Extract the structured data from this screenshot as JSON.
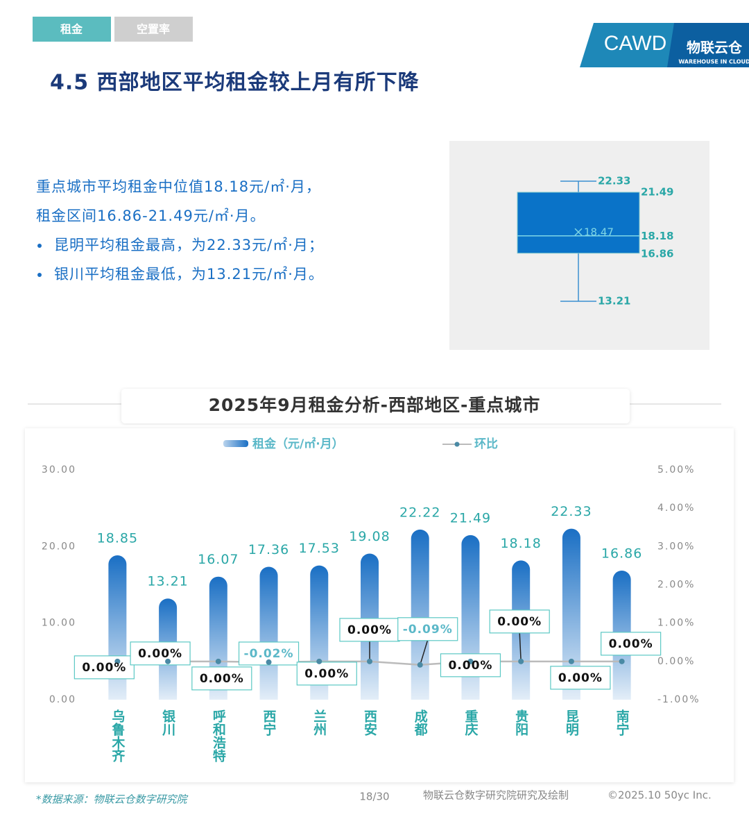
{
  "tabs": [
    "租金",
    "空置率"
  ],
  "logo": {
    "mark": "CAWD",
    "brand": "物联云仓",
    "brand_sub": "WAREHOUSE IN CLOUD"
  },
  "heading": "4.5 西部地区平均租金较上月有所下降",
  "summary": [
    "重点城市平均租金中位值18.18元/㎡·月，",
    "租金区间16.86-21.49元/㎡·月。"
  ],
  "bullets": [
    "昆明平均租金最高，为22.33元/㎡·月；",
    "银川平均租金最低，为13.21元/㎡·月。"
  ],
  "chart_data": [
    {
      "type": "box",
      "color": "#0a73c8",
      "label_color": "#2aa7a7",
      "stats": {
        "max": 22.33,
        "q3": 21.49,
        "median": 18.18,
        "q1": 16.86,
        "min": 13.21,
        "mean": 18.47
      }
    },
    {
      "type": "combo",
      "title": "2025年9月租金分析-西部地区-重点城市",
      "categories": [
        "乌鲁木齐",
        "银川",
        "呼和浩特",
        "西宁",
        "兰州",
        "西安",
        "成都",
        "重庆",
        "贵阳",
        "昆明",
        "南宁"
      ],
      "series": [
        {
          "name": "租金（元/㎡·月）",
          "color": "#1a6fc4",
          "values": [
            18.85,
            13.21,
            16.07,
            17.36,
            17.53,
            19.08,
            22.22,
            21.49,
            18.18,
            22.33,
            16.86
          ]
        },
        {
          "name": "环比",
          "color": "#bbbbbb",
          "axis": "y2",
          "values": [
            0,
            0,
            0,
            -0.02,
            0,
            0,
            -0.09,
            0,
            0,
            0,
            0
          ],
          "value_labels": [
            "0.00%",
            "0.00%",
            "0.00%",
            "-0.02%",
            "0.00%",
            "0.00%",
            "-0.09%",
            "0.00%",
            "0.00%",
            "0.00%",
            "0.00%"
          ]
        }
      ],
      "ylim": [
        0,
        30
      ],
      "yticks": [
        {
          "value": 0,
          "label": "0.00"
        },
        {
          "value": 10,
          "label": "10.00"
        },
        {
          "value": 20,
          "label": "20.00"
        },
        {
          "value": 30,
          "label": "30.00"
        }
      ],
      "y2lim": [
        -1,
        5
      ],
      "y2ticks": [
        {
          "value": -1,
          "label": "-1.00%"
        },
        {
          "value": 0,
          "label": "0.00%"
        },
        {
          "value": 1,
          "label": "1.00%"
        },
        {
          "value": 2,
          "label": "2.00%"
        },
        {
          "value": 3,
          "label": "3.00%"
        },
        {
          "value": 4,
          "label": "4.00%"
        },
        {
          "value": 5,
          "label": "5.00%"
        }
      ]
    }
  ],
  "footer": {
    "source": "*数据来源：物联云仓数字研究院",
    "page": "18/30",
    "credit": "物联云仓数字研究院研究及绘制",
    "copyright": "©2025.10 50yc Inc."
  }
}
